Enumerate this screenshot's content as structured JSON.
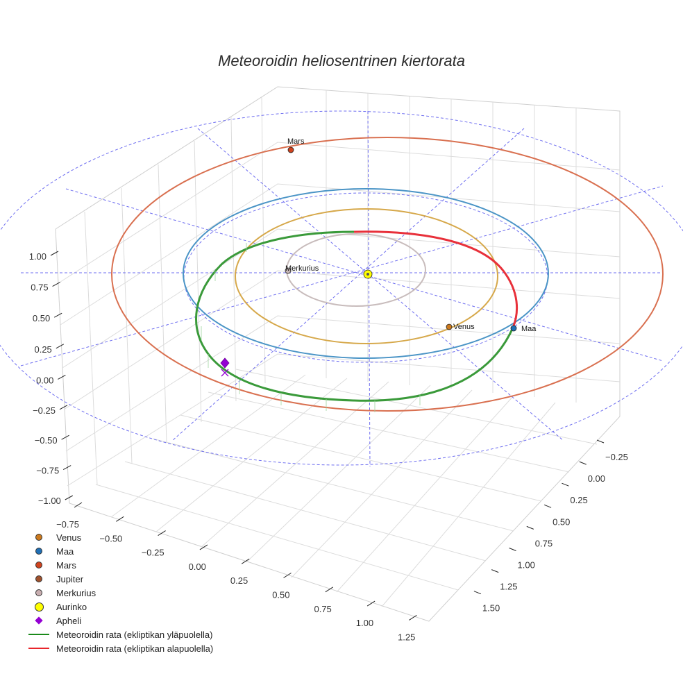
{
  "chart_data": {
    "type": "line",
    "projection": "3d",
    "title": "Meteoroidin heliosentrinen kiertorata",
    "x_ticks": [
      "−0.75",
      "−0.50",
      "−0.25",
      "0.00",
      "0.25",
      "0.50",
      "0.75",
      "1.00",
      "1.25"
    ],
    "y_ticks": [
      "−0.25",
      "0.00",
      "0.25",
      "0.50",
      "0.75",
      "1.00",
      "1.25",
      "1.50"
    ],
    "z_ticks": [
      "1.00",
      "0.75",
      "0.50",
      "0.25",
      "0.00",
      "−0.25",
      "−0.50",
      "−0.75",
      "−1.00"
    ],
    "bodies": [
      {
        "name": "Merkurius",
        "orbit_radius_au": 0.39,
        "position": [
          -0.39,
          0.0,
          0.0
        ],
        "color": "#c4b5b5"
      },
      {
        "name": "Venus",
        "orbit_radius_au": 0.72,
        "position": [
          0.55,
          0.47,
          0.0
        ],
        "color": "#d4a040"
      },
      {
        "name": "Maa",
        "orbit_radius_au": 1.0,
        "position": [
          0.87,
          0.5,
          0.0
        ],
        "color": "#2d7dc0"
      },
      {
        "name": "Mars",
        "orbit_radius_au": 1.52,
        "position": [
          -0.45,
          -1.45,
          0.0
        ],
        "color": "#d85a36"
      },
      {
        "name": "Aurinko",
        "position": [
          0.0,
          0.0,
          0.0
        ],
        "color": "#ffff00"
      }
    ],
    "meteoroid_orbit": {
      "perihelion_au": 0.7,
      "aphelion_au": 1.02,
      "aphelion_position": [
        -0.88,
        0.55,
        0.04
      ]
    },
    "series": [
      {
        "name": "Meteoroidin rata (ekliptikan yläpuolella)",
        "color": "#2f9a2f"
      },
      {
        "name": "Meteoroidin rata (ekliptikan alapuolella)",
        "color": "#e8252b"
      }
    ],
    "legend": [
      {
        "label": "Venus",
        "marker": "dot",
        "color": "#cc7a1e"
      },
      {
        "label": "Maa",
        "marker": "dot",
        "color": "#1f6fb5"
      },
      {
        "label": "Mars",
        "marker": "dot",
        "color": "#d0431e"
      },
      {
        "label": "Jupiter",
        "marker": "dot",
        "color": "#a0522d"
      },
      {
        "label": "Merkurius",
        "marker": "dot",
        "color": "#c8aeb0"
      },
      {
        "label": "Aurinko",
        "marker": "bigdot",
        "color": "#ffff00"
      },
      {
        "label": "Apheli",
        "marker": "diamond",
        "color": "#9400d3"
      },
      {
        "label": "Meteoroidin rata (ekliptikan yläpuolella)",
        "marker": "line",
        "color": "#1a8a1a"
      },
      {
        "label": "Meteoroidin rata (ekliptikan alapuolella)",
        "marker": "line",
        "color": "#e8252b"
      }
    ]
  }
}
